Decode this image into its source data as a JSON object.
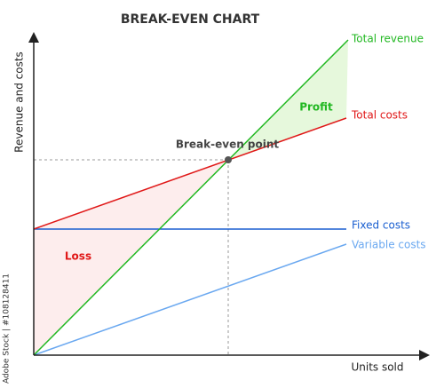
{
  "chart_data": {
    "type": "diagram",
    "title": "BREAK-EVEN CHART",
    "y_label": "Revenue and costs",
    "x_label": "Units sold",
    "lines": [
      "Total revenue",
      "Total costs",
      "Fixed costs",
      "Variable costs"
    ],
    "annotations": {
      "profit": "Profit",
      "loss": "Loss",
      "break_even": "Break-even point"
    },
    "watermark": "Adobe Stock | #108128411"
  }
}
